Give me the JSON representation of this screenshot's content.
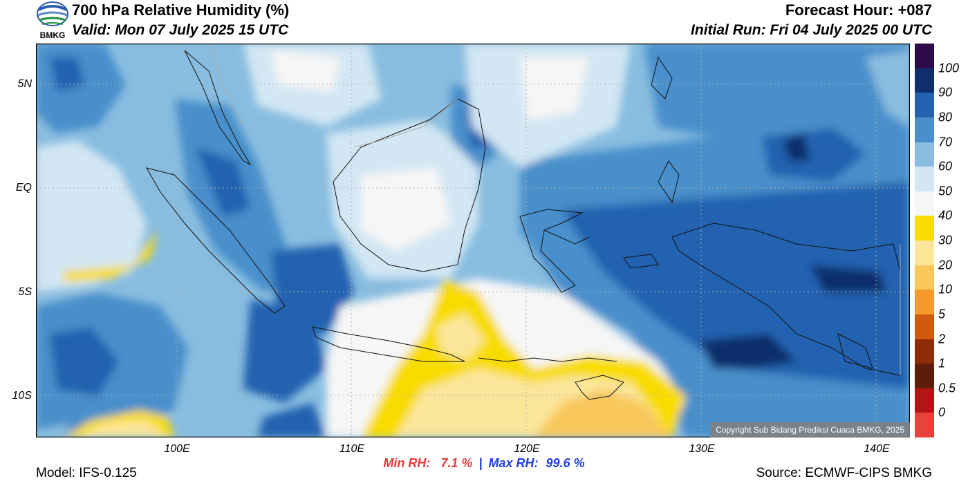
{
  "header": {
    "logo_text": "BMKG",
    "title": "700 hPa Relative Humidity (%)",
    "valid": "Valid: Mon 07 July 2025 15 UTC",
    "forecast_hour": "Forecast Hour: +087",
    "initial_run": "Initial Run: Fri 04 July 2025 00 UTC"
  },
  "map": {
    "lat_labels": [
      "5N",
      "EQ",
      "5S",
      "10S"
    ],
    "lon_labels": [
      "100E",
      "110E",
      "120E",
      "130E",
      "140E"
    ],
    "copyright": "Copyright Sub Bidang Prediksi Cuaca BMKG, 2025"
  },
  "colorbar": {
    "labels": [
      "100",
      "90",
      "80",
      "70",
      "60",
      "50",
      "40",
      "30",
      "20",
      "10",
      "5",
      "2",
      "1",
      "0.5",
      "0"
    ],
    "colors": [
      "#2d0a4a",
      "#0e2f6b",
      "#2462b0",
      "#4a8fcb",
      "#88bde0",
      "#d2e6f3",
      "#f6f6f6",
      "#f8dc00",
      "#fbe59a",
      "#f9c85c",
      "#f79a2d",
      "#d25a0e",
      "#8e2c08",
      "#5e1d08",
      "#b41414",
      "#e8423a"
    ]
  },
  "stats": {
    "min_label": "Min RH:",
    "min_value": "7.1 %",
    "separator": "|",
    "max_label": "Max RH:",
    "max_value": "99.6 %"
  },
  "footer": {
    "model": "Model: IFS-0.125",
    "source": "Source: ECMWF-CIPS BMKG"
  }
}
